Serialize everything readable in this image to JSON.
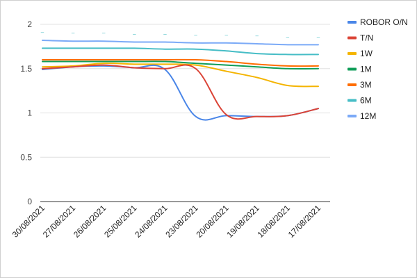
{
  "chart_data": {
    "type": "line",
    "title": "",
    "xlabel": "",
    "ylabel": "",
    "ylim": [
      0,
      2
    ],
    "yticks": [
      "0",
      "0.5",
      "1",
      "1.5",
      "2"
    ],
    "categories": [
      "30/08/2021",
      "27/08/2021",
      "26/08/2021",
      "25/08/2021",
      "24/08/2021",
      "23/08/2021",
      "20/08/2021",
      "19/08/2021",
      "18/08/2021",
      "17/08/2021"
    ],
    "legend_position": "right",
    "grid": true,
    "series": [
      {
        "name": "ROBOR O/N",
        "color": "#4a86e8",
        "values": [
          1.49,
          1.52,
          1.53,
          1.51,
          1.49,
          0.96,
          0.97,
          0.96,
          0.97,
          1.05
        ]
      },
      {
        "name": "T/N",
        "color": "#db4437",
        "values": [
          1.5,
          1.52,
          1.54,
          1.51,
          1.5,
          1.5,
          0.98,
          0.96,
          0.97,
          1.05
        ]
      },
      {
        "name": "1W",
        "color": "#f4b400",
        "values": [
          1.52,
          1.53,
          1.56,
          1.55,
          1.55,
          1.54,
          1.47,
          1.4,
          1.31,
          1.3
        ]
      },
      {
        "name": "1M",
        "color": "#0f9d58",
        "values": [
          1.58,
          1.58,
          1.58,
          1.58,
          1.58,
          1.56,
          1.54,
          1.52,
          1.5,
          1.5
        ]
      },
      {
        "name": "3M",
        "color": "#ff6d00",
        "values": [
          1.6,
          1.6,
          1.6,
          1.6,
          1.6,
          1.6,
          1.58,
          1.55,
          1.53,
          1.53
        ]
      },
      {
        "name": "6M",
        "color": "#46bdc6",
        "values": [
          1.73,
          1.73,
          1.73,
          1.73,
          1.72,
          1.72,
          1.7,
          1.67,
          1.66,
          1.66
        ]
      },
      {
        "name": "12M",
        "color": "#7baaf7",
        "values": [
          1.82,
          1.81,
          1.81,
          1.8,
          1.8,
          1.79,
          1.79,
          1.78,
          1.77,
          1.77
        ]
      }
    ],
    "annotations": [
      "–",
      "–",
      "–",
      "–",
      "–",
      "–",
      "–",
      "–",
      "–",
      "–"
    ]
  }
}
